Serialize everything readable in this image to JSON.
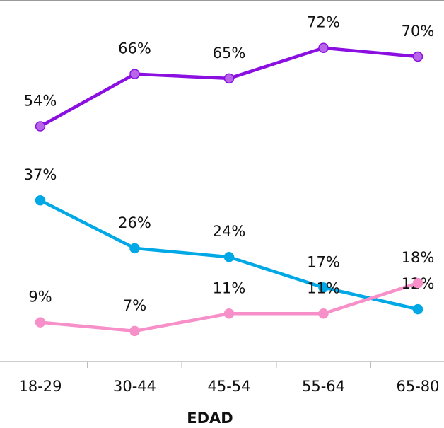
{
  "chart_data": {
    "type": "line",
    "categories": [
      "18-29",
      "30-44",
      "45-54",
      "55-64",
      "65-80"
    ],
    "x_label": "EDAD",
    "ylim": [
      0,
      83
    ],
    "series": [
      {
        "color": "#8a0fe0",
        "marker_color": "#b865ea",
        "values": [
          54,
          66,
          65,
          72,
          70
        ],
        "value_labels": [
          "54%",
          "66%",
          "65%",
          "72%",
          "70%"
        ]
      },
      {
        "color": "#00a8e6",
        "marker_color": "#00a8e6",
        "values": [
          37,
          26,
          24,
          17,
          12
        ],
        "value_labels": [
          "37%",
          "26%",
          "24%",
          "17%",
          "12%"
        ]
      },
      {
        "color": "#f78fc8",
        "marker_color": "#f78fc8",
        "values": [
          9,
          7,
          11,
          11,
          18
        ],
        "value_labels": [
          "9%",
          "7%",
          "11%",
          "11%",
          "18%"
        ]
      }
    ]
  }
}
